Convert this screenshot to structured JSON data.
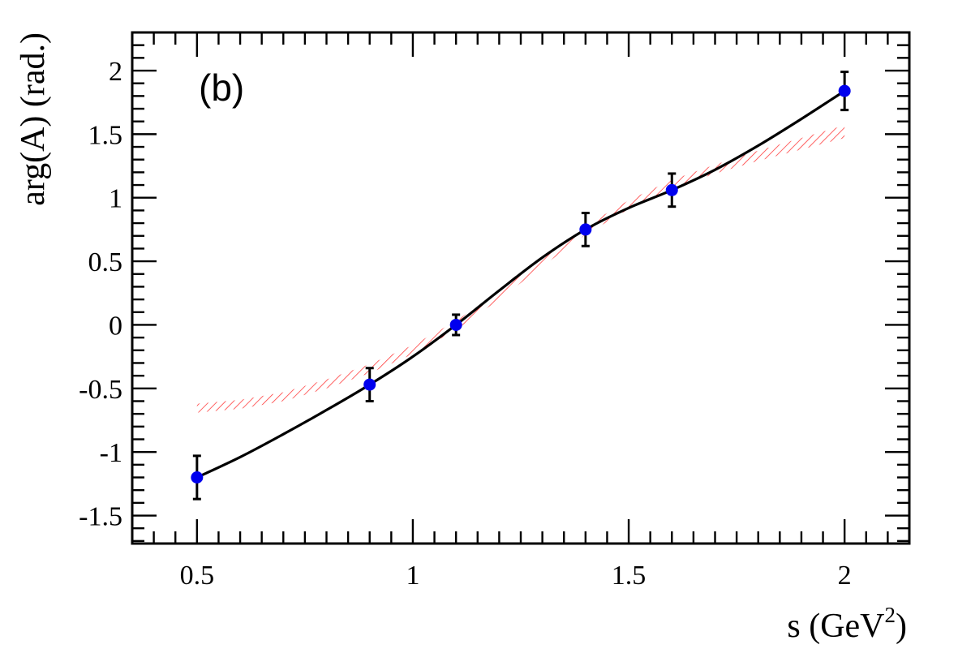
{
  "chart_data": {
    "type": "scatter",
    "panel_label": "(b)",
    "xlabel": "s (GeV",
    "xlabel_sup": "2",
    "xlabel_close": ")",
    "ylabel": "arg(A) (rad.)",
    "xlim": [
      0.35,
      2.15
    ],
    "ylim": [
      -1.72,
      2.3
    ],
    "x_ticks": [
      0.5,
      1,
      1.5,
      2
    ],
    "x_tick_labels": [
      "0.5",
      "1",
      "1.5",
      "2"
    ],
    "y_ticks": [
      -1.5,
      -1,
      -0.5,
      0,
      0.5,
      1,
      1.5,
      2
    ],
    "y_tick_labels": [
      "-1.5",
      "-1",
      "-0.5",
      "0",
      "0.5",
      "1",
      "1.5",
      "2"
    ],
    "grid": false,
    "points": {
      "x": [
        0.5,
        0.9,
        1.1,
        1.4,
        1.6,
        2.0
      ],
      "y": [
        -1.2,
        -0.47,
        0.0,
        0.75,
        1.06,
        1.84
      ],
      "err": [
        0.17,
        0.13,
        0.08,
        0.13,
        0.13,
        0.15
      ],
      "color": "#0000ee"
    },
    "curve": {
      "x": [
        0.5,
        0.6,
        0.7,
        0.8,
        0.9,
        1.0,
        1.1,
        1.2,
        1.3,
        1.4,
        1.5,
        1.6,
        1.7,
        1.8,
        1.9,
        2.0
      ],
      "y": [
        -1.2,
        -1.04,
        -0.86,
        -0.67,
        -0.47,
        -0.25,
        0.0,
        0.27,
        0.53,
        0.75,
        0.92,
        1.06,
        1.22,
        1.41,
        1.62,
        1.84
      ],
      "color": "#000000"
    },
    "band": {
      "x": [
        0.5,
        0.6,
        0.7,
        0.8,
        0.9,
        1.0,
        1.1,
        1.2,
        1.3,
        1.4,
        1.5,
        1.6,
        1.7,
        1.8,
        1.9,
        2.0
      ],
      "y_low": [
        -0.69,
        -0.66,
        -0.6,
        -0.5,
        -0.38,
        -0.23,
        -0.04,
        0.2,
        0.46,
        0.71,
        0.91,
        1.07,
        1.19,
        1.29,
        1.38,
        1.47
      ],
      "y_high": [
        -0.62,
        -0.59,
        -0.53,
        -0.43,
        -0.31,
        -0.16,
        0.03,
        0.27,
        0.53,
        0.78,
        0.98,
        1.14,
        1.26,
        1.37,
        1.47,
        1.57
      ],
      "color": "#ff3b3b"
    }
  }
}
